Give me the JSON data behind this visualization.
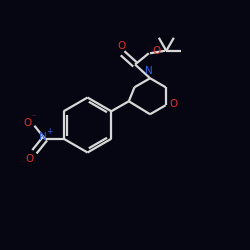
{
  "bg_color": "#060612",
  "bond_color": "#d8d8d8",
  "o_color": "#e03030",
  "n_color": "#3060e0",
  "bond_width": 1.6,
  "figsize": [
    2.5,
    2.5
  ],
  "dpi": 100,
  "xlim": [
    0,
    10
  ],
  "ylim": [
    0,
    10
  ]
}
